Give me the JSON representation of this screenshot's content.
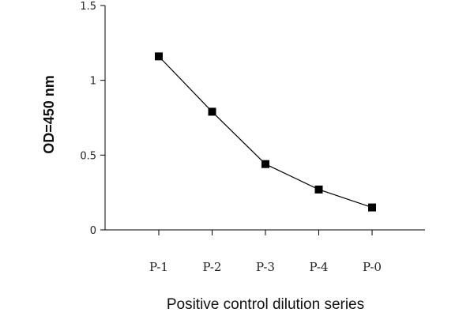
{
  "chart_data": {
    "type": "line",
    "title": "",
    "xlabel": "Positive control dilution series",
    "ylabel": "OD=450 nm",
    "categories": [
      "P-1",
      "P-2",
      "P-3",
      "P-4",
      "P-0"
    ],
    "series": [
      {
        "values": [
          1.16,
          0.79,
          0.44,
          0.27,
          0.15
        ]
      }
    ],
    "ylim": [
      0,
      1.5
    ],
    "yticks": [
      "0",
      "0.5",
      "1",
      "1.5"
    ],
    "marker": "square",
    "grid": false,
    "line_color": "#000000"
  }
}
